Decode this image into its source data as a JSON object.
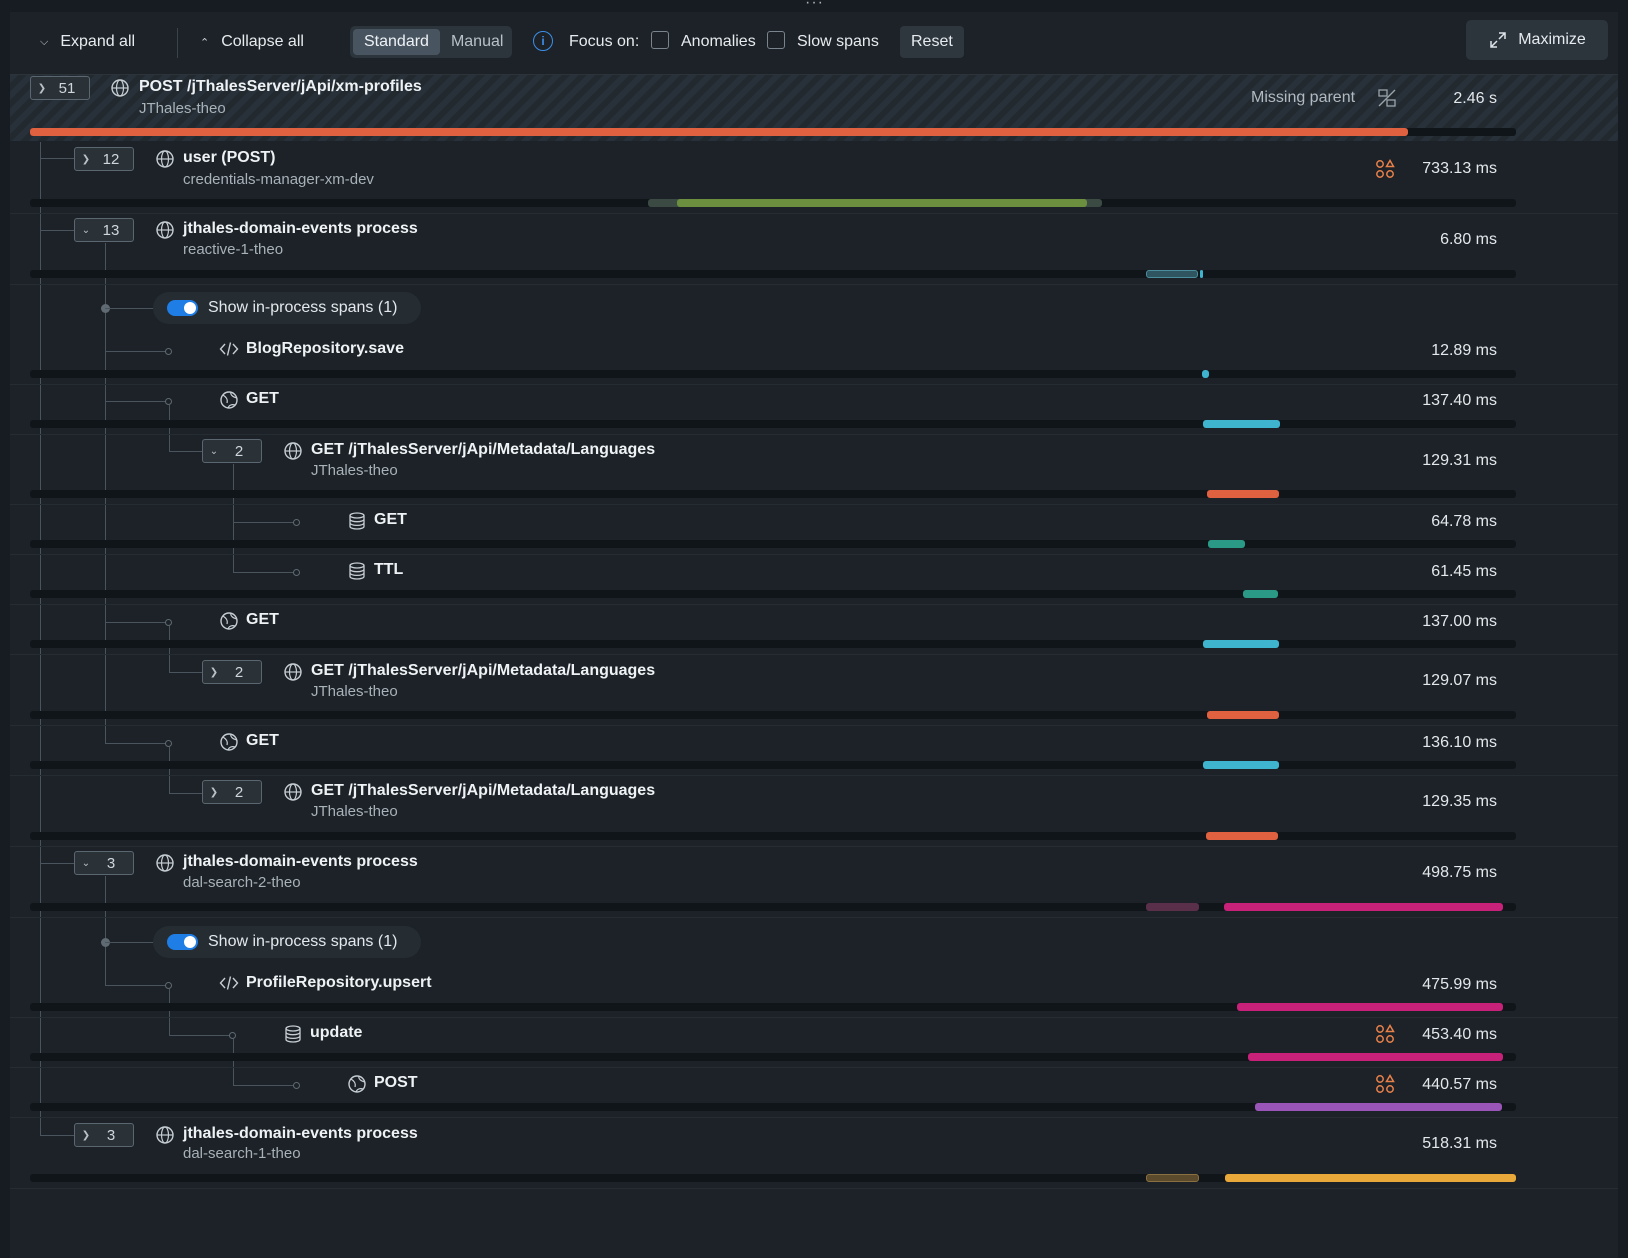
{
  "toolbar": {
    "expand_all": "Expand all",
    "collapse_all": "Collapse all",
    "view_standard": "Standard",
    "view_manual": "Manual",
    "focus_on": "Focus on:",
    "anomalies": "Anomalies",
    "slow_spans": "Slow spans",
    "reset": "Reset",
    "maximize": "Maximize"
  },
  "root": {
    "count": "51",
    "name": "POST /jThalesServer/jApi/xm-profiles",
    "service": "JThales-theo",
    "missing_parent": "Missing parent",
    "duration": "2.46 s"
  },
  "spans": [
    {
      "count": "12",
      "name": "user (POST)",
      "service": "credentials-manager-xm-dev",
      "duration": "733.13 ms"
    },
    {
      "count": "13",
      "name": "jthales-domain-events process",
      "service": "reactive-1-theo",
      "duration": "6.80 ms"
    },
    {
      "toggle": "Show in-process spans (1)"
    },
    {
      "name": "BlogRepository.save",
      "duration": "12.89 ms"
    },
    {
      "name": "GET",
      "duration": "137.40 ms"
    },
    {
      "count": "2",
      "name": "GET /jThalesServer/jApi/Metadata/Languages",
      "service": "JThales-theo",
      "duration": "129.31 ms"
    },
    {
      "name": "GET",
      "duration": "64.78 ms"
    },
    {
      "name": "TTL",
      "duration": "61.45 ms"
    },
    {
      "name": "GET",
      "duration": "137.00 ms"
    },
    {
      "count": "2",
      "name": "GET /jThalesServer/jApi/Metadata/Languages",
      "service": "JThales-theo",
      "duration": "129.07 ms"
    },
    {
      "name": "GET",
      "duration": "136.10 ms"
    },
    {
      "count": "2",
      "name": "GET /jThalesServer/jApi/Metadata/Languages",
      "service": "JThales-theo",
      "duration": "129.35 ms"
    },
    {
      "count": "3",
      "name": "jthales-domain-events process",
      "service": "dal-search-2-theo",
      "duration": "498.75 ms"
    },
    {
      "toggle": "Show in-process spans (1)"
    },
    {
      "name": "ProfileRepository.upsert",
      "duration": "475.99 ms"
    },
    {
      "name": "update",
      "duration": "453.40 ms"
    },
    {
      "name": "POST",
      "duration": "440.57 ms"
    },
    {
      "count": "3",
      "name": "jthales-domain-events process",
      "service": "dal-search-1-theo",
      "duration": "518.31 ms"
    }
  ],
  "colors": {
    "root_bar": "#e0613f",
    "user_bar": "#6b8f3e",
    "process_bar": "#3fb4cf",
    "http_bar": "#3fb4cf",
    "remote_bar": "#e0613f",
    "db_bar": "#2a9a86",
    "search2_bar": "#c8217a",
    "post_bar": "#9a55b8",
    "search1_bar": "#e8a83a",
    "anomaly": "#e8804a"
  }
}
